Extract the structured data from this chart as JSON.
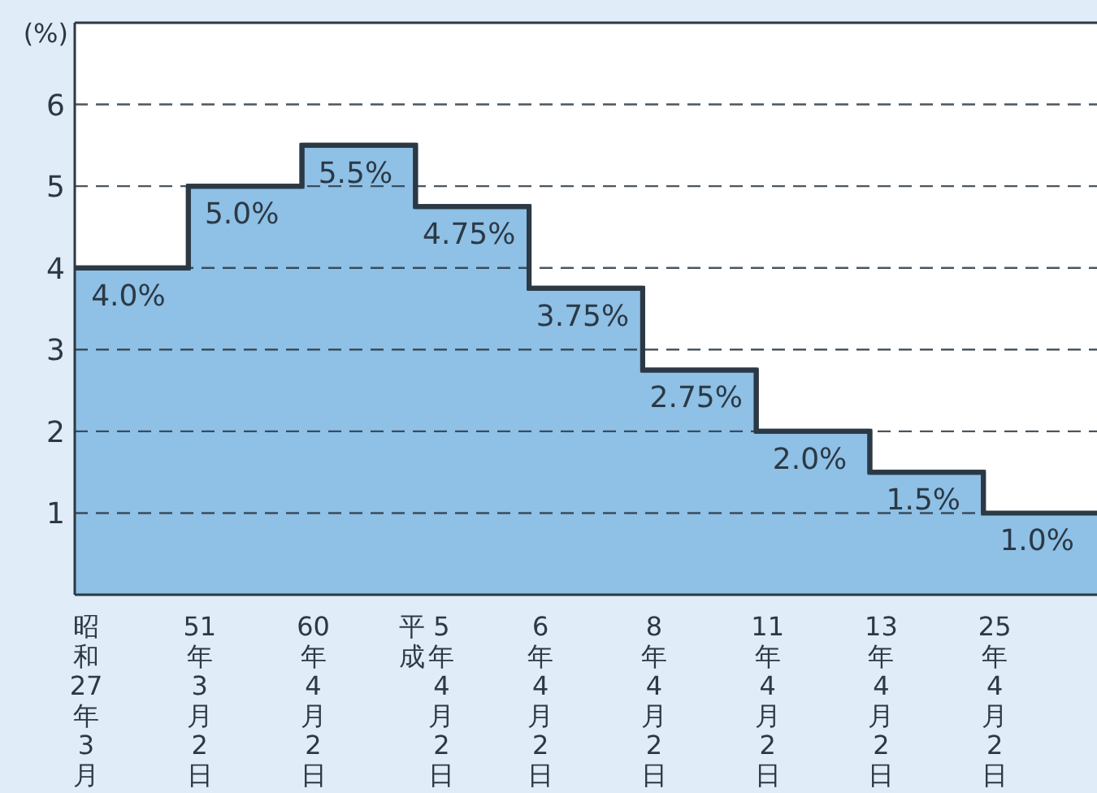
{
  "chart_data": {
    "type": "step",
    "ylabel": "(%)",
    "categories": [
      "昭和27年3月",
      "51年3月2日",
      "60年4月2日",
      "平成5年4月2日",
      "6年4月2日",
      "8年4月2日",
      "11年4月2日",
      "13年4月2日",
      "25年4月2日"
    ],
    "values": [
      4.0,
      5.0,
      5.5,
      4.75,
      3.75,
      2.75,
      2.0,
      1.5,
      1.0
    ],
    "value_labels": [
      "4.0%",
      "5.0%",
      "5.5%",
      "4.75%",
      "3.75%",
      "2.75%",
      "2.0%",
      "1.5%",
      "1.0%"
    ],
    "color": "#2b3945",
    "ylim": [
      0,
      7
    ],
    "yticks": [
      1,
      2,
      3,
      4,
      5,
      6
    ],
    "grid": "y"
  }
}
